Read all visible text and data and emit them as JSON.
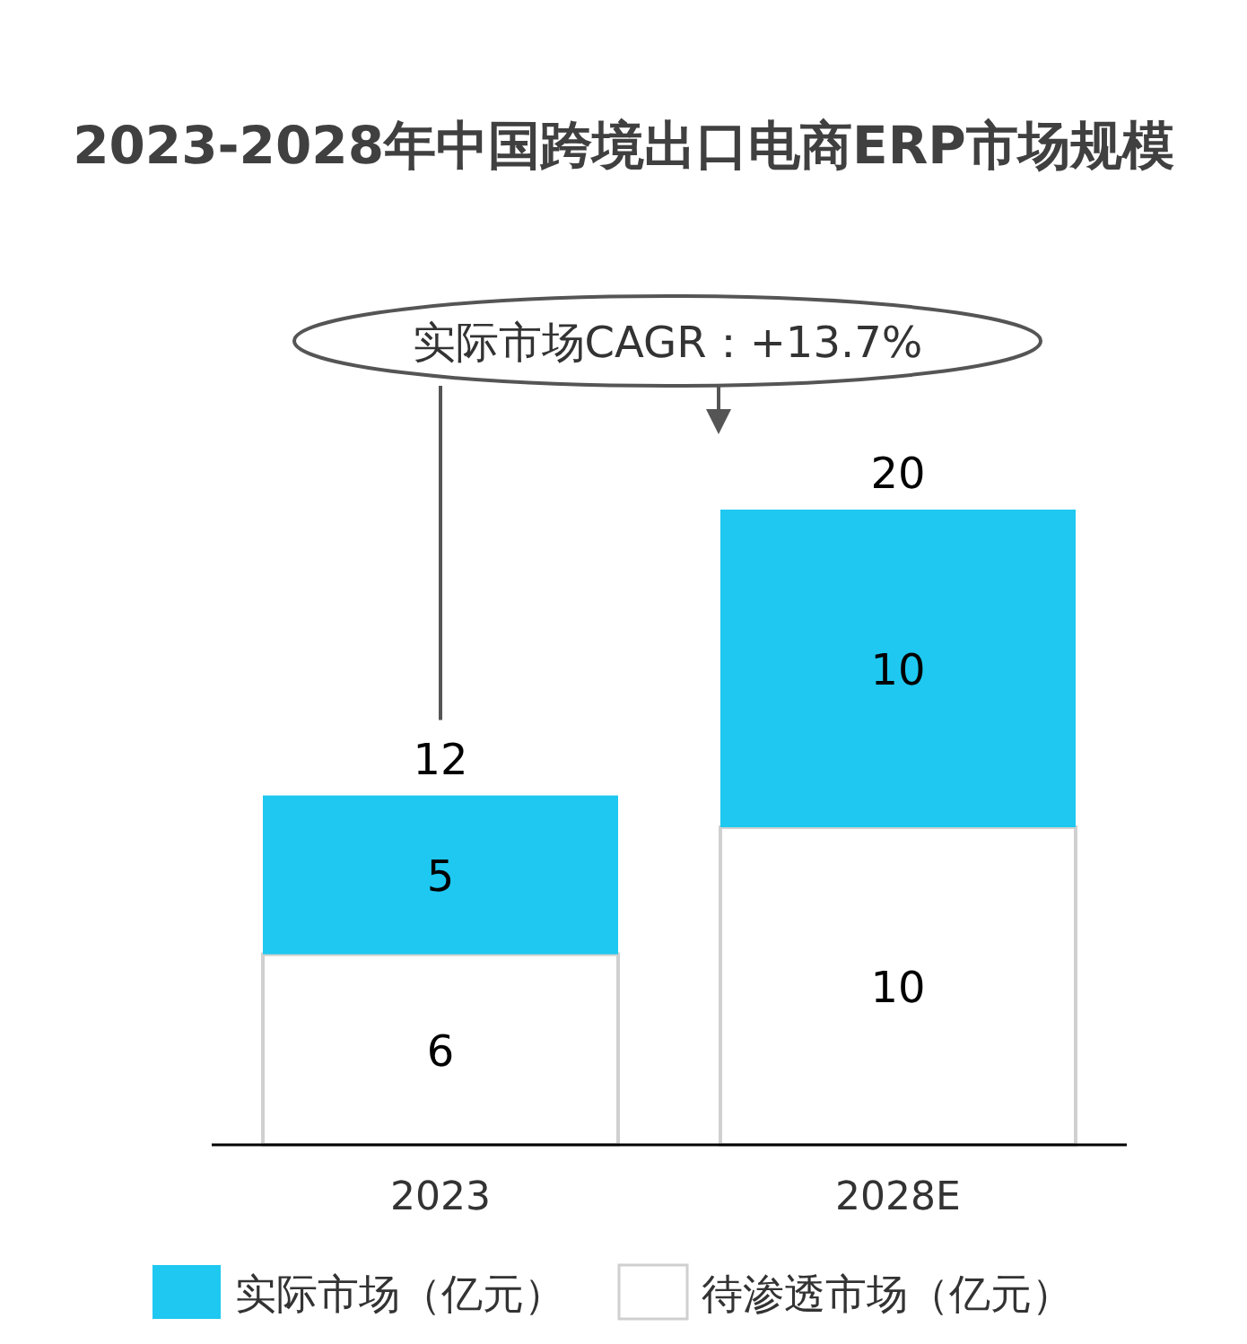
{
  "chart_data": {
    "type": "bar",
    "title": "2023-2028年中国跨境出口电商ERP市场规模",
    "categories": [
      "2023",
      "2028E"
    ],
    "stacked": true,
    "series": [
      {
        "name": "待渗透市场（亿元）",
        "color": "#ffffff",
        "values": [
          6,
          10
        ]
      },
      {
        "name": "实际市场（亿元）",
        "color": "#1ec8f0",
        "values": [
          5,
          10
        ]
      }
    ],
    "totals": [
      "12",
      "20"
    ],
    "data_labels": true,
    "annotations": [
      "实际市场CAGR：+13.7%"
    ],
    "legend": "bottom"
  }
}
